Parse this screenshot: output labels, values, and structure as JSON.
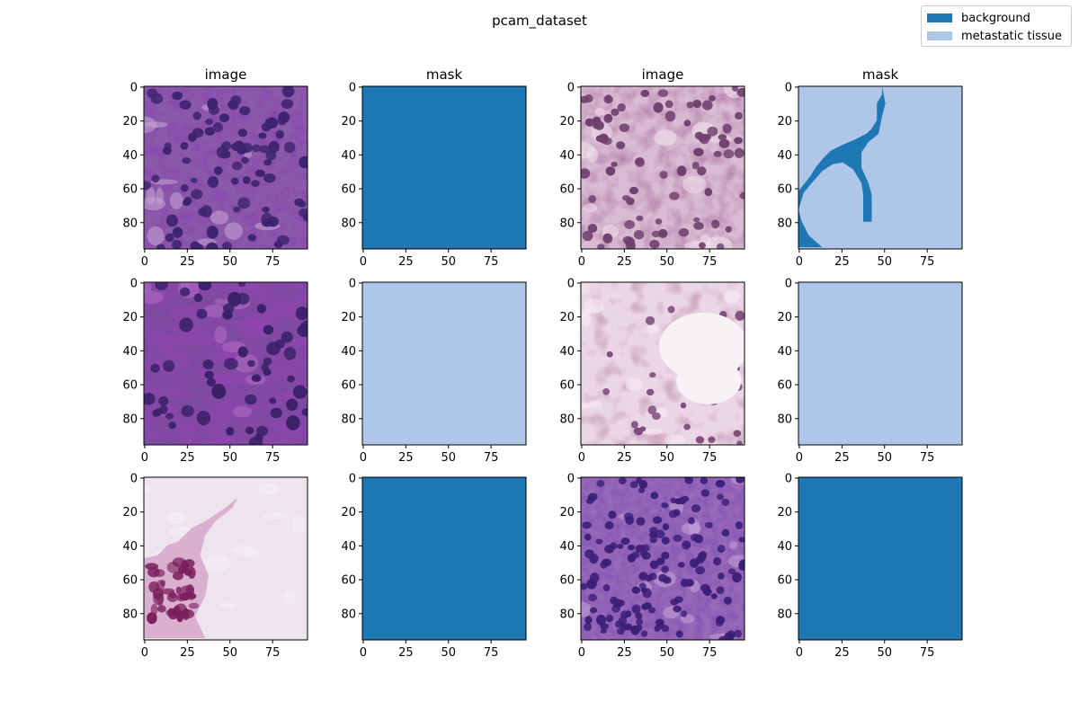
{
  "figure": {
    "title": "pcam_dataset"
  },
  "colors": {
    "background": "#1f77b4",
    "metastatic": "#aec7e8"
  },
  "legend": {
    "placement": "top-right",
    "items": [
      {
        "label": "background",
        "color": "#1f77b4"
      },
      {
        "label": "metastatic tissue",
        "color": "#aec7e8"
      }
    ]
  },
  "chart_data": {
    "type": "heatmap",
    "image_size": [
      96,
      96
    ],
    "xlim": [
      0,
      95
    ],
    "ylim": [
      95,
      0
    ],
    "x_ticks": [
      0,
      25,
      50,
      75
    ],
    "y_ticks": [
      0,
      20,
      40,
      60,
      80
    ],
    "column_titles": [
      "image",
      "mask",
      "image",
      "mask"
    ],
    "rows": [
      {
        "image1": {
          "tone": "dense-purple"
        },
        "mask1": {
          "class": "background"
        },
        "image2": {
          "tone": "pink-cells"
        },
        "mask2": {
          "class": "mixed",
          "background_region": [
            [
              0,
              0
            ],
            [
              49,
              0
            ],
            [
              49,
              5
            ],
            [
              46,
              10
            ],
            [
              46,
              20
            ],
            [
              43,
              25
            ],
            [
              40,
              28
            ],
            [
              32,
              32
            ],
            [
              27,
              34
            ],
            [
              23,
              36
            ],
            [
              19,
              38
            ],
            [
              14,
              43
            ],
            [
              10,
              48
            ],
            [
              7,
              53
            ],
            [
              3,
              58
            ],
            [
              0,
              62
            ],
            [
              0,
              95
            ],
            [
              14,
              95
            ],
            [
              6,
              88
            ],
            [
              2,
              80
            ],
            [
              0,
              73
            ],
            [
              3,
              63
            ],
            [
              7,
              58
            ],
            [
              14,
              50
            ],
            [
              20,
              46
            ],
            [
              26,
              45
            ],
            [
              32,
              49
            ],
            [
              37,
              57
            ],
            [
              38,
              64
            ],
            [
              38,
              80
            ],
            [
              43,
              80
            ],
            [
              43,
              64
            ],
            [
              41,
              57
            ],
            [
              37,
              48
            ],
            [
              37,
              39
            ],
            [
              41,
              33
            ],
            [
              47,
              28
            ],
            [
              49,
              18
            ],
            [
              51,
              10
            ],
            [
              49,
              0
            ]
          ]
        }
      },
      {
        "image1": {
          "tone": "purple-spindle"
        },
        "mask1": {
          "class": "metastatic tissue"
        },
        "image2": {
          "tone": "pale-stroma"
        },
        "mask2": {
          "class": "metastatic tissue"
        }
      },
      {
        "image1": {
          "tone": "sparse-pale"
        },
        "mask1": {
          "class": "background"
        },
        "image2": {
          "tone": "dense-nuclei"
        },
        "mask2": {
          "class": "background"
        }
      }
    ]
  }
}
